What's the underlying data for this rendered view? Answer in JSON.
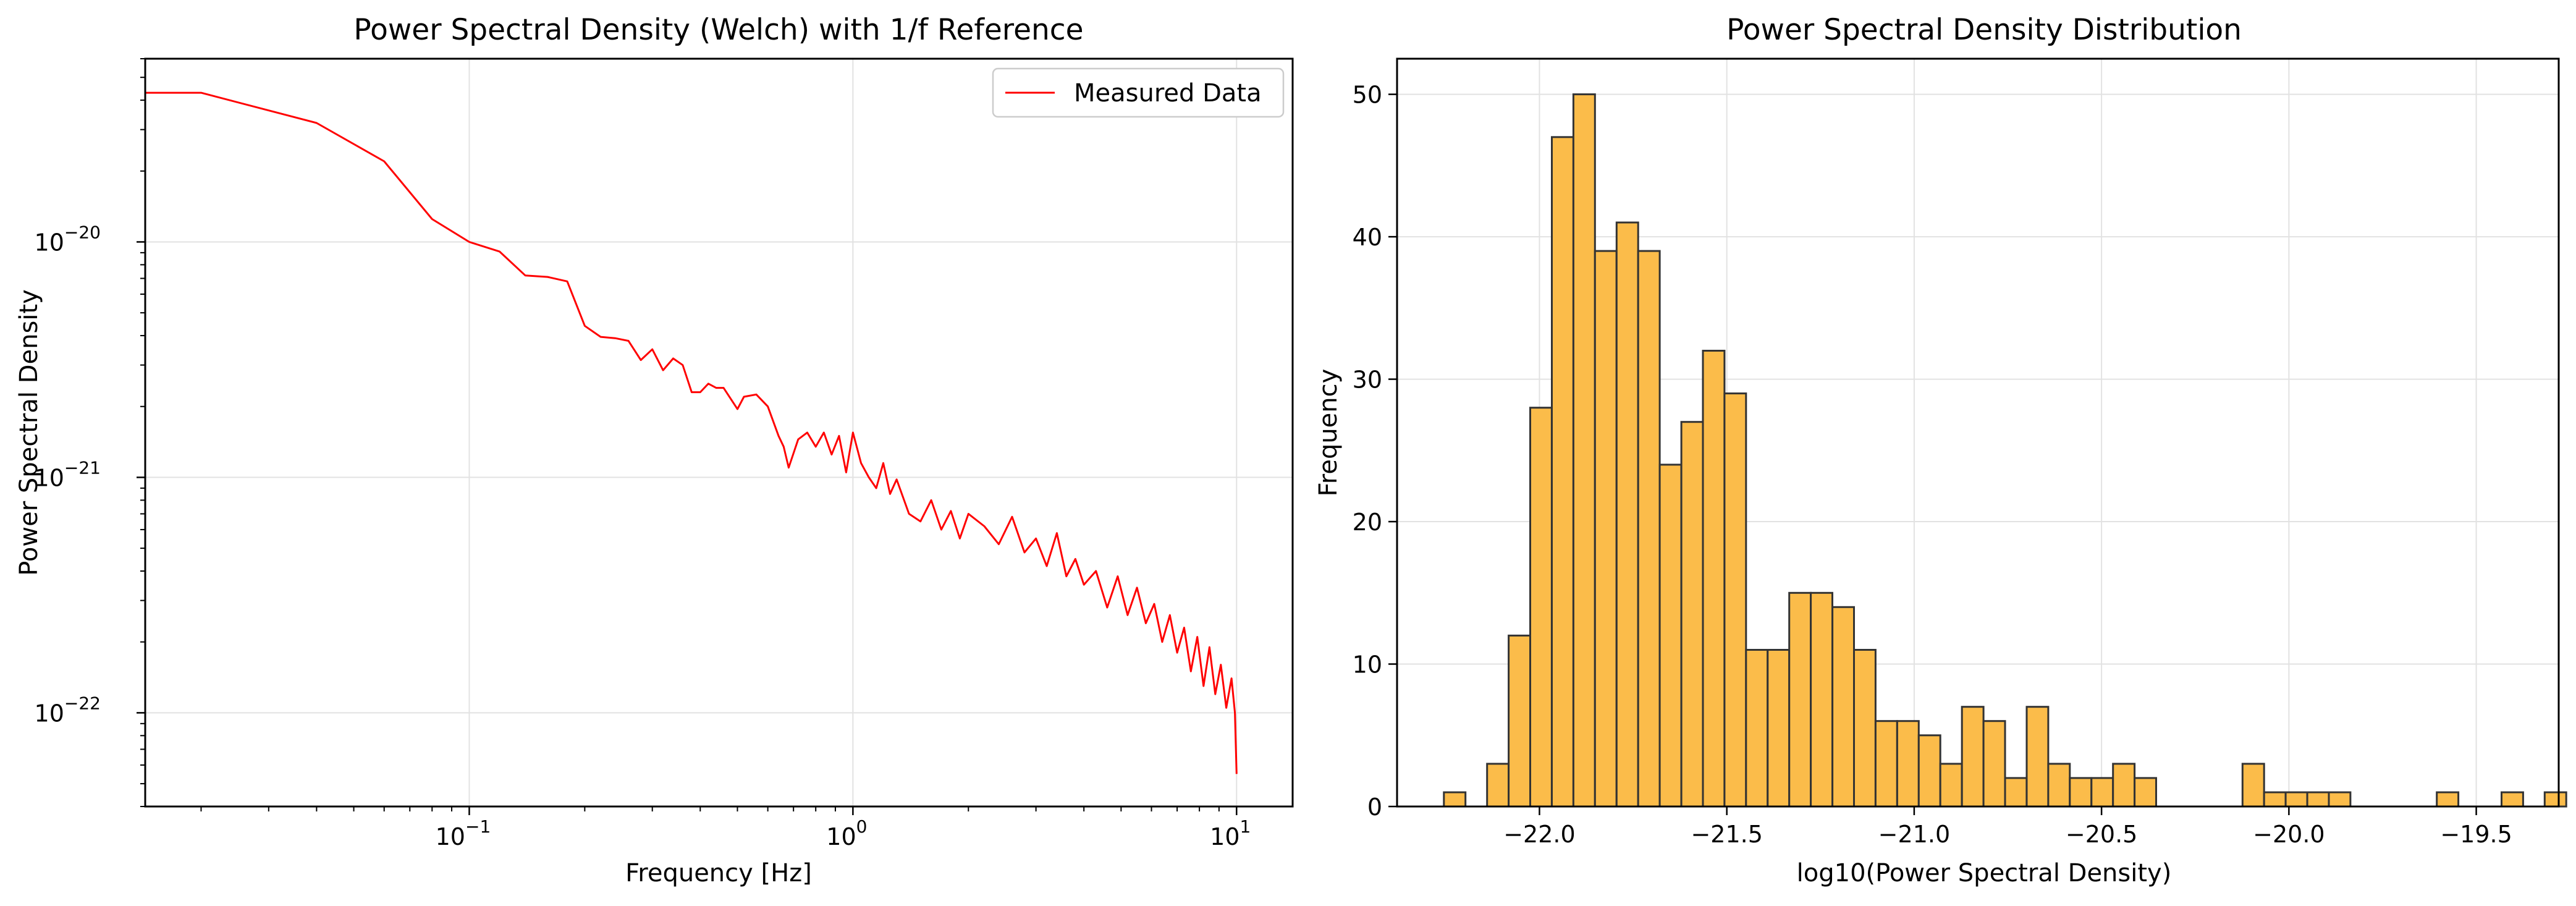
{
  "chart_data": [
    {
      "type": "line",
      "title": "Power Spectral Density (Welch) with 1/f Reference",
      "xlabel": "Frequency [Hz]",
      "ylabel": "Power Spectral Density",
      "xscale": "log",
      "yscale": "log",
      "xlim": [
        0.0143,
        14
      ],
      "ylim": [
        4e-23,
        6e-20
      ],
      "grid": true,
      "legend_position": "top-right",
      "xticks": [
        {
          "label": "10",
          "exp": "−1",
          "value": 0.1
        },
        {
          "label": "10",
          "exp": "0",
          "value": 1
        },
        {
          "label": "10",
          "exp": "1",
          "value": 10
        }
      ],
      "yticks": [
        {
          "label": "10",
          "exp": "−22",
          "value": 1e-22
        },
        {
          "label": "10",
          "exp": "−21",
          "value": 1e-21
        },
        {
          "label": "10",
          "exp": "−20",
          "value": 1e-20
        }
      ],
      "series": [
        {
          "name": "Measured Data",
          "color": "#ff0000",
          "points": [
            [
              0.0143,
              4.3e-20
            ],
            [
              0.02,
              4.3e-20
            ],
            [
              0.04,
              3.2e-20
            ],
            [
              0.06,
              2.2e-20
            ],
            [
              0.08,
              1.25e-20
            ],
            [
              0.1,
              1e-20
            ],
            [
              0.12,
              9.1e-21
            ],
            [
              0.14,
              7.2e-21
            ],
            [
              0.16,
              7.1e-21
            ],
            [
              0.18,
              6.8e-21
            ],
            [
              0.2,
              4.4e-21
            ],
            [
              0.22,
              3.95e-21
            ],
            [
              0.24,
              3.9e-21
            ],
            [
              0.26,
              3.8e-21
            ],
            [
              0.28,
              3.15e-21
            ],
            [
              0.3,
              3.5e-21
            ],
            [
              0.32,
              2.85e-21
            ],
            [
              0.34,
              3.2e-21
            ],
            [
              0.36,
              3e-21
            ],
            [
              0.38,
              2.3e-21
            ],
            [
              0.4,
              2.3e-21
            ],
            [
              0.42,
              2.5e-21
            ],
            [
              0.44,
              2.4e-21
            ],
            [
              0.46,
              2.4e-21
            ],
            [
              0.5,
              1.95e-21
            ],
            [
              0.52,
              2.2e-21
            ],
            [
              0.56,
              2.25e-21
            ],
            [
              0.6,
              2e-21
            ],
            [
              0.64,
              1.5e-21
            ],
            [
              0.66,
              1.35e-21
            ],
            [
              0.68,
              1.1e-21
            ],
            [
              0.72,
              1.45e-21
            ],
            [
              0.76,
              1.55e-21
            ],
            [
              0.8,
              1.35e-21
            ],
            [
              0.84,
              1.55e-21
            ],
            [
              0.88,
              1.25e-21
            ],
            [
              0.92,
              1.5e-21
            ],
            [
              0.96,
              1.05e-21
            ],
            [
              1.0,
              1.55e-21
            ],
            [
              1.05,
              1.15e-21
            ],
            [
              1.1,
              1e-21
            ],
            [
              1.15,
              9e-22
            ],
            [
              1.2,
              1.15e-21
            ],
            [
              1.25,
              8.5e-22
            ],
            [
              1.3,
              9.8e-22
            ],
            [
              1.4,
              7e-22
            ],
            [
              1.5,
              6.5e-22
            ],
            [
              1.6,
              8e-22
            ],
            [
              1.7,
              6e-22
            ],
            [
              1.8,
              7.2e-22
            ],
            [
              1.9,
              5.5e-22
            ],
            [
              2.0,
              7e-22
            ],
            [
              2.2,
              6.2e-22
            ],
            [
              2.4,
              5.2e-22
            ],
            [
              2.6,
              6.8e-22
            ],
            [
              2.8,
              4.8e-22
            ],
            [
              3.0,
              5.5e-22
            ],
            [
              3.2,
              4.2e-22
            ],
            [
              3.4,
              5.8e-22
            ],
            [
              3.6,
              3.8e-22
            ],
            [
              3.8,
              4.5e-22
            ],
            [
              4.0,
              3.5e-22
            ],
            [
              4.3,
              4e-22
            ],
            [
              4.6,
              2.8e-22
            ],
            [
              4.9,
              3.8e-22
            ],
            [
              5.2,
              2.6e-22
            ],
            [
              5.5,
              3.4e-22
            ],
            [
              5.8,
              2.4e-22
            ],
            [
              6.1,
              2.9e-22
            ],
            [
              6.4,
              2e-22
            ],
            [
              6.7,
              2.6e-22
            ],
            [
              7.0,
              1.8e-22
            ],
            [
              7.3,
              2.3e-22
            ],
            [
              7.6,
              1.5e-22
            ],
            [
              7.9,
              2.1e-22
            ],
            [
              8.2,
              1.3e-22
            ],
            [
              8.5,
              1.9e-22
            ],
            [
              8.8,
              1.2e-22
            ],
            [
              9.1,
              1.6e-22
            ],
            [
              9.4,
              1.05e-22
            ],
            [
              9.7,
              1.4e-22
            ],
            [
              9.9,
              1e-22
            ],
            [
              10.0,
              5.5e-23
            ]
          ]
        }
      ]
    },
    {
      "type": "histogram",
      "title": "Power Spectral Density Distribution",
      "xlabel": "log10(Power Spectral Density)",
      "ylabel": "Frequency",
      "xlim": [
        -22.38,
        -19.28
      ],
      "ylim": [
        0,
        52.5
      ],
      "grid": true,
      "bar_color": "#fbbc4a",
      "edge_color": "#333333",
      "xticks": [
        -22.0,
        -21.5,
        -21.0,
        -20.5,
        -20.0,
        -19.5
      ],
      "yticks": [
        0,
        10,
        20,
        30,
        40,
        50
      ],
      "bin_start": -22.255,
      "bin_width": 0.0576,
      "counts": [
        1,
        0,
        3,
        12,
        28,
        47,
        50,
        39,
        41,
        39,
        24,
        27,
        32,
        29,
        11,
        11,
        15,
        15,
        14,
        11,
        6,
        6,
        5,
        3,
        7,
        6,
        2,
        7,
        3,
        2,
        2,
        3,
        2,
        0,
        0,
        0,
        0,
        3,
        1,
        1,
        1,
        1,
        0,
        0,
        0,
        0,
        1,
        0,
        0,
        1,
        0,
        1
      ]
    }
  ]
}
